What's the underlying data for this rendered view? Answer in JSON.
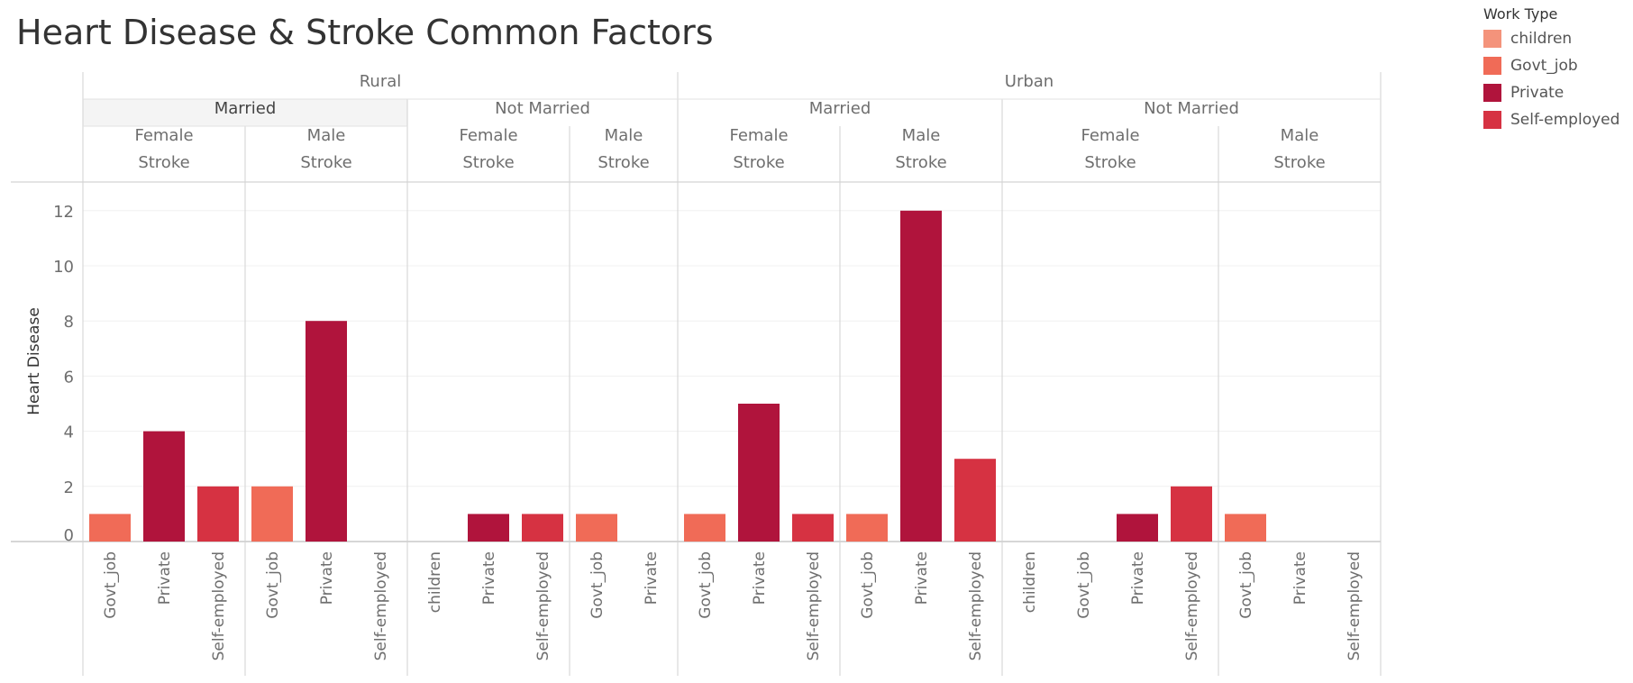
{
  "title": "Heart Disease & Stroke Common Factors",
  "legend": {
    "title": "Work Type",
    "items": [
      {
        "label": "children",
        "color": "#F4937B"
      },
      {
        "label": "Govt_job",
        "color": "#F06B57"
      },
      {
        "label": "Private",
        "color": "#B0143C"
      },
      {
        "label": "Self-employed",
        "color": "#D63242"
      }
    ]
  },
  "chart_data": {
    "type": "bar",
    "ylabel": "Heart Disease",
    "ylim": [
      0,
      13
    ],
    "yticks": [
      0,
      2,
      4,
      6,
      8,
      10,
      12
    ],
    "grid": true,
    "legend_placement": "top-right",
    "level1": [
      "Rural",
      "Urban"
    ],
    "level2": [
      "Married",
      "Not Married"
    ],
    "panels": [
      {
        "residence": "Rural",
        "marital": "Married",
        "gender": "Female",
        "stroke": "Stroke",
        "bars": [
          {
            "category": "Govt_job",
            "value": 1
          },
          {
            "category": "Private",
            "value": 4
          },
          {
            "category": "Self-employed",
            "value": 2
          }
        ]
      },
      {
        "residence": "Rural",
        "marital": "Married",
        "gender": "Male",
        "stroke": "Stroke",
        "bars": [
          {
            "category": "Govt_job",
            "value": 2
          },
          {
            "category": "Private",
            "value": 8
          },
          {
            "category": "Self-employed",
            "value": 0
          }
        ]
      },
      {
        "residence": "Rural",
        "marital": "Not Married",
        "gender": "Female",
        "stroke": "Stroke",
        "bars": [
          {
            "category": "children",
            "value": 0
          },
          {
            "category": "Private",
            "value": 1
          },
          {
            "category": "Self-employed",
            "value": 1
          }
        ]
      },
      {
        "residence": "Rural",
        "marital": "Not Married",
        "gender": "Male",
        "stroke": "Stroke",
        "bars": [
          {
            "category": "Govt_job",
            "value": 1
          },
          {
            "category": "Private",
            "value": 0
          }
        ]
      },
      {
        "residence": "Urban",
        "marital": "Married",
        "gender": "Female",
        "stroke": "Stroke",
        "bars": [
          {
            "category": "Govt_job",
            "value": 1
          },
          {
            "category": "Private",
            "value": 5
          },
          {
            "category": "Self-employed",
            "value": 1
          }
        ]
      },
      {
        "residence": "Urban",
        "marital": "Married",
        "gender": "Male",
        "stroke": "Stroke",
        "bars": [
          {
            "category": "Govt_job",
            "value": 1
          },
          {
            "category": "Private",
            "value": 12
          },
          {
            "category": "Self-employed",
            "value": 3
          }
        ]
      },
      {
        "residence": "Urban",
        "marital": "Not Married",
        "gender": "Female",
        "stroke": "Stroke",
        "bars": [
          {
            "category": "children",
            "value": 0
          },
          {
            "category": "Govt_job",
            "value": 0
          },
          {
            "category": "Private",
            "value": 1
          },
          {
            "category": "Self-employed",
            "value": 2
          }
        ]
      },
      {
        "residence": "Urban",
        "marital": "Not Married",
        "gender": "Male",
        "stroke": "Stroke",
        "bars": [
          {
            "category": "Govt_job",
            "value": 1
          },
          {
            "category": "Private",
            "value": 0
          },
          {
            "category": "Self-employed",
            "value": 0
          }
        ]
      }
    ]
  }
}
